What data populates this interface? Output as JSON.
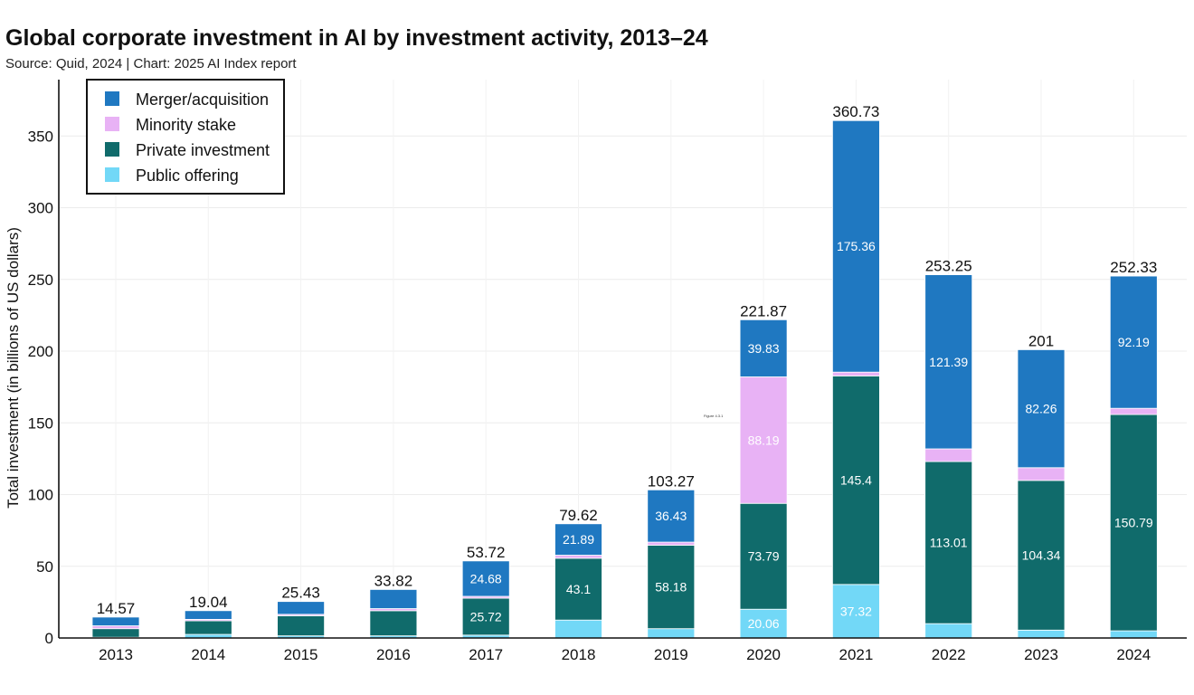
{
  "title": "Global corporate investment in AI by investment activity, 2013–24",
  "subtitle": "Source: Quid, 2024 | Chart: 2025 AI Index report",
  "figure_label": "Figure 4.3.1",
  "colors": {
    "Merger/acquisition": "#1f78c1",
    "Minority stake": "#e8b2f5",
    "Private investment": "#106b6b",
    "Public offering": "#72d8f7"
  },
  "chart_data": {
    "type": "bar",
    "stacked": true,
    "title": "Global corporate investment in AI by investment activity, 2013–24",
    "ylabel": "Total investment (in billions of US dollars)",
    "xlabel": "",
    "ylim": [
      0,
      390
    ],
    "yticks": [
      0,
      50,
      100,
      150,
      200,
      250,
      300,
      350
    ],
    "grid": true,
    "legend_position": "top-left",
    "categories": [
      "2013",
      "2014",
      "2015",
      "2016",
      "2017",
      "2018",
      "2019",
      "2020",
      "2021",
      "2022",
      "2023",
      "2024"
    ],
    "totals": [
      "14.57",
      "19.04",
      "25.43",
      "33.82",
      "53.72",
      "79.62",
      "103.27",
      "221.87",
      "360.73",
      "253.25",
      "201",
      "252.33"
    ],
    "series": [
      {
        "name": "Public offering",
        "values": [
          0.5,
          2.5,
          1.5,
          1.5,
          2.0,
          12.5,
          6.5,
          20.06,
          37.32,
          10.0,
          5.5,
          5.0
        ],
        "labels": [
          "",
          "",
          "",
          "",
          "",
          "",
          "",
          "20.06",
          "37.32",
          "",
          "",
          ""
        ]
      },
      {
        "name": "Private investment",
        "values": [
          6.0,
          9.5,
          14.0,
          17.5,
          25.72,
          43.1,
          58.18,
          73.79,
          145.4,
          113.01,
          104.34,
          150.79
        ],
        "labels": [
          "",
          "",
          "",
          "",
          "25.72",
          "43.1",
          "58.18",
          "73.79",
          "145.4",
          "113.01",
          "104.34",
          "150.79"
        ]
      },
      {
        "name": "Minority stake",
        "values": [
          2.0,
          1.0,
          1.0,
          1.5,
          1.32,
          2.13,
          2.16,
          88.19,
          2.65,
          8.85,
          8.9,
          4.35
        ],
        "labels": [
          "",
          "",
          "",
          "",
          "",
          "",
          "",
          "88.19",
          "",
          "",
          "",
          ""
        ]
      },
      {
        "name": "Merger/acquisition",
        "values": [
          6.07,
          6.04,
          8.93,
          13.32,
          24.68,
          21.89,
          36.43,
          39.83,
          175.36,
          121.39,
          82.26,
          92.19
        ],
        "labels": [
          "",
          "",
          "",
          "",
          "24.68",
          "21.89",
          "36.43",
          "39.83",
          "175.36",
          "121.39",
          "82.26",
          "92.19"
        ]
      }
    ]
  },
  "legend": {
    "order": [
      "Merger/acquisition",
      "Minority stake",
      "Private investment",
      "Public offering"
    ]
  }
}
